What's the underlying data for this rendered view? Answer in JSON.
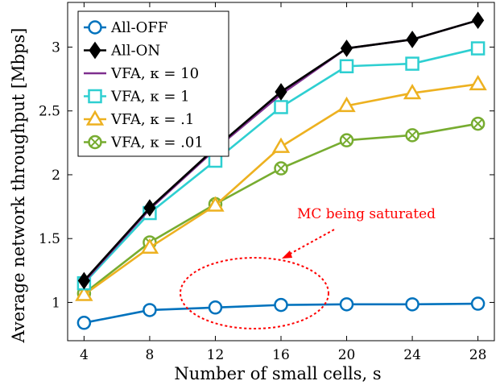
{
  "chart_data": {
    "type": "line",
    "xlabel": "Number of small cells, s",
    "ylabel": "Average network throughput [Mbps]",
    "x": [
      4,
      8,
      12,
      16,
      20,
      24,
      28
    ],
    "xlim": [
      3,
      29
    ],
    "ylim": [
      0.7,
      3.35
    ],
    "xticks": [
      "4",
      "8",
      "12",
      "16",
      "20",
      "24",
      "28"
    ],
    "yticks": [
      1,
      1.5,
      2,
      2.5,
      3
    ],
    "ytick_labels": [
      "1",
      "1.5",
      "2",
      "2.5",
      "3"
    ],
    "grid": false,
    "legend_position": "top-left",
    "series": [
      {
        "name": "All-OFF",
        "color": "#0072bd",
        "marker": "circle",
        "values": [
          0.84,
          0.94,
          0.96,
          0.98,
          0.985,
          0.985,
          0.99
        ]
      },
      {
        "name": "All-ON",
        "color": "#000000",
        "marker": "diamond",
        "values": [
          1.17,
          1.74,
          2.21,
          2.65,
          2.99,
          3.06,
          3.21
        ]
      },
      {
        "name": "VFA, κ = 10",
        "color": "#7e2f8e",
        "marker": "none",
        "values": [
          1.16,
          1.73,
          2.2,
          2.63,
          2.99,
          3.06,
          3.21
        ]
      },
      {
        "name": "VFA, κ = 1",
        "color": "#2ecfd1",
        "marker": "square",
        "values": [
          1.15,
          1.7,
          2.11,
          2.53,
          2.85,
          2.87,
          2.99
        ]
      },
      {
        "name": "VFA, κ = .1",
        "color": "#edb120",
        "marker": "triangle",
        "values": [
          1.06,
          1.43,
          1.76,
          2.22,
          2.54,
          2.64,
          2.71
        ]
      },
      {
        "name": "VFA, κ = .01",
        "color": "#77ac30",
        "marker": "circle-x",
        "values": [
          1.07,
          1.47,
          1.77,
          2.05,
          2.27,
          2.31,
          2.4
        ]
      }
    ],
    "annotation": {
      "text": "MC being saturated",
      "color": "#ff0000"
    }
  }
}
